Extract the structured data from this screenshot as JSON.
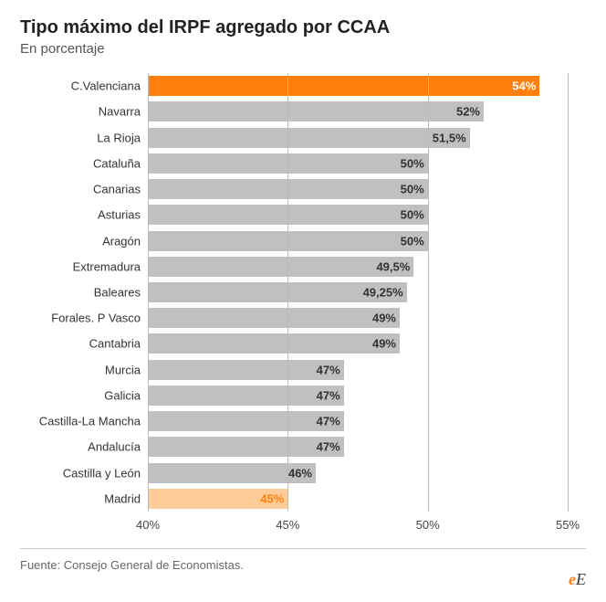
{
  "title": "Tipo máximo del IRPF agregado por CCAA",
  "subtitle": "En porcentaje",
  "source": "Fuente: Consejo General de Economistas.",
  "logo": {
    "part1": "e",
    "part2": "E"
  },
  "chart": {
    "type": "bar-horizontal",
    "xlim": [
      40,
      55
    ],
    "xticks": [
      40,
      45,
      50,
      55
    ],
    "xtick_labels": [
      "40%",
      "45%",
      "50%",
      "55%"
    ],
    "grid_color": "#bbbbbb",
    "label_fontsize": 13,
    "default_bar_color": "#c0c0c0",
    "default_label_color": "#333333",
    "categories": [
      {
        "name": "C.Valenciana",
        "value": 54,
        "label": "54%",
        "bar_color": "#ff7f0e",
        "label_color": "#ffffff"
      },
      {
        "name": "Navarra",
        "value": 52,
        "label": "52%"
      },
      {
        "name": "La Rioja",
        "value": 51.5,
        "label": "51,5%"
      },
      {
        "name": "Cataluña",
        "value": 50,
        "label": "50%"
      },
      {
        "name": "Canarias",
        "value": 50,
        "label": "50%"
      },
      {
        "name": "Asturias",
        "value": 50,
        "label": "50%"
      },
      {
        "name": "Aragón",
        "value": 50,
        "label": "50%"
      },
      {
        "name": "Extremadura",
        "value": 49.5,
        "label": "49,5%"
      },
      {
        "name": "Baleares",
        "value": 49.25,
        "label": "49,25%"
      },
      {
        "name": "Forales. P Vasco",
        "value": 49,
        "label": "49%"
      },
      {
        "name": "Cantabria",
        "value": 49,
        "label": "49%"
      },
      {
        "name": "Murcia",
        "value": 47,
        "label": "47%"
      },
      {
        "name": "Galicia",
        "value": 47,
        "label": "47%"
      },
      {
        "name": "Castilla-La Mancha",
        "value": 47,
        "label": "47%"
      },
      {
        "name": "Andalucía",
        "value": 47,
        "label": "47%"
      },
      {
        "name": "Castilla y León",
        "value": 46,
        "label": "46%"
      },
      {
        "name": "Madrid",
        "value": 45,
        "label": "45%",
        "bar_color": "#ffcc99",
        "label_color": "#ff7f0e"
      }
    ]
  }
}
